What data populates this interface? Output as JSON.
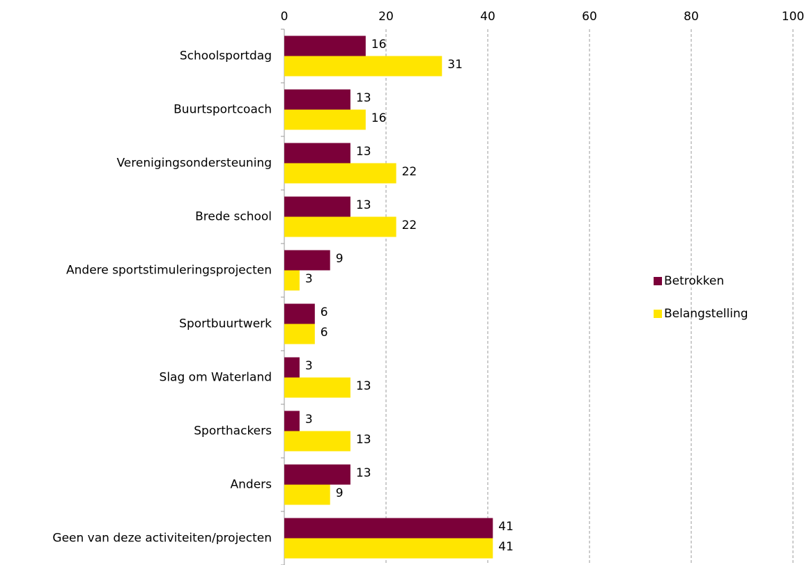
{
  "chart_data": {
    "type": "hbar",
    "categories": [
      "Schoolsportdag",
      "Buurtsportcoach",
      "Verenigingsondersteuning",
      "Brede school",
      "Andere sportstimuleringsprojecten",
      "Sportbuurtwerk",
      "Slag om Waterland",
      "Sporthackers",
      "Anders",
      "Geen van deze activiteiten/projecten"
    ],
    "series": [
      {
        "name": "Betrokken",
        "color": "#7b0039",
        "values": [
          16,
          13,
          13,
          13,
          9,
          6,
          3,
          3,
          13,
          41
        ]
      },
      {
        "name": "Belangstelling",
        "color": "#ffe500",
        "values": [
          31,
          16,
          22,
          22,
          3,
          6,
          13,
          13,
          9,
          41
        ]
      }
    ],
    "xlim": [
      0,
      100
    ],
    "xticks": [
      0,
      20,
      40,
      60,
      80,
      100
    ],
    "grid": true,
    "legend": "right"
  }
}
